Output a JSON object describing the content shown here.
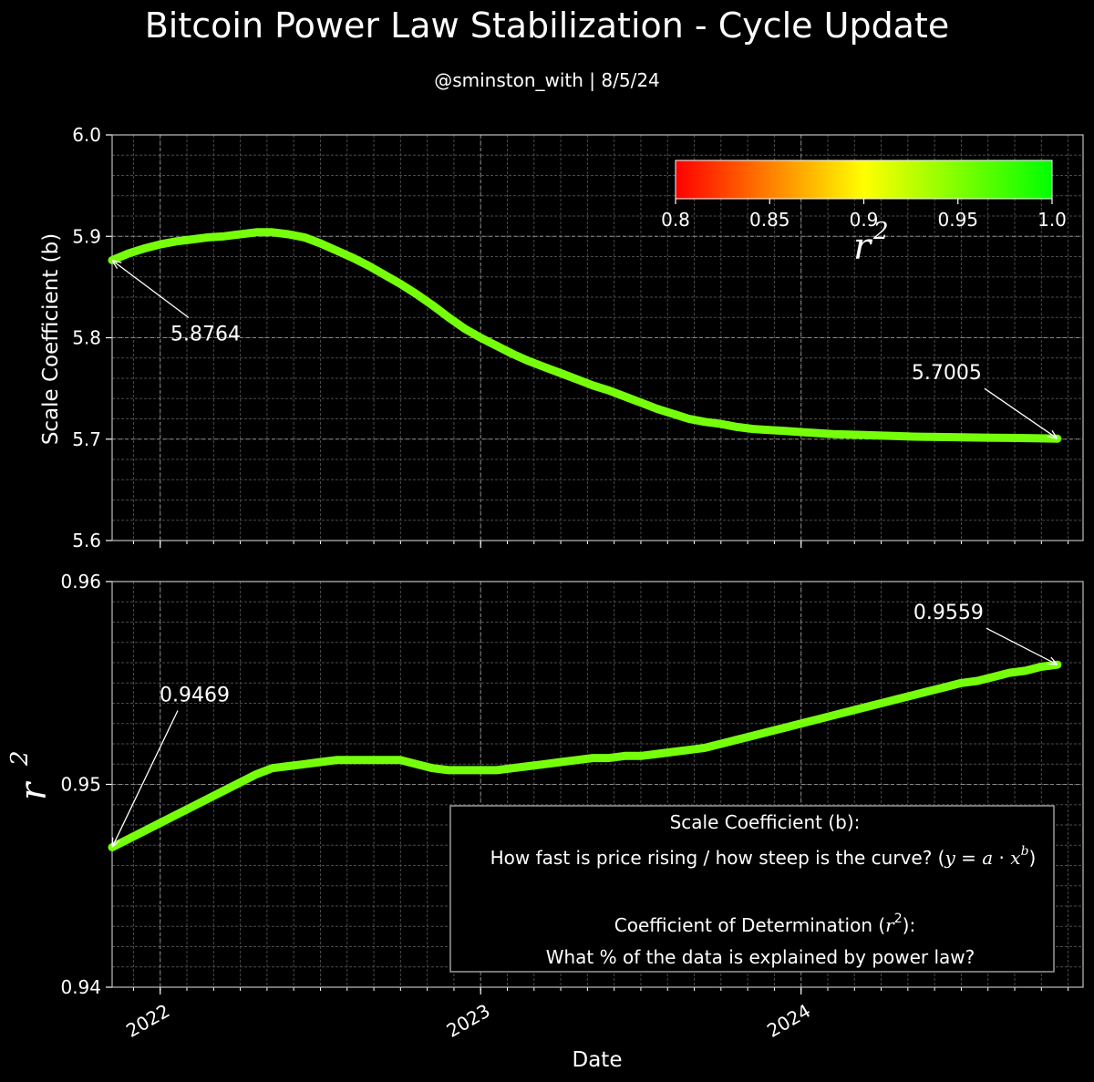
{
  "title": "Bitcoin Power Law Stabilization - Cycle Update",
  "subtitle": "@sminston_with | 8/5/24",
  "colors": {
    "background": "#000000",
    "line": "#76ff0b",
    "grid_major": "#8a8a8a",
    "grid_minor": "#4a4a4a",
    "colormap": [
      "#ff0000",
      "#ffff00",
      "#00ff00"
    ]
  },
  "colorbar": {
    "ticks": [
      "0.8",
      "0.85",
      "0.9",
      "0.95",
      "1.0"
    ],
    "range": [
      0.8,
      1.0
    ],
    "label_base": "r",
    "label_exp": "2"
  },
  "info_box": {
    "line1": "Scale Coefficient (b):",
    "line2_text": "How fast is price rising / how steep is the curve? (",
    "line2_y": "y",
    "line2_eq": " = ",
    "line2_a": "a",
    "line2_dot": " · ",
    "line2_x": "x",
    "line2_b": "b",
    "line2_close": ")",
    "line3_text": "Coefficient of Determination (",
    "line3_r": "r",
    "line3_exp": "2",
    "line3_close": "):",
    "line4": "What % of the data is explained by power law?"
  },
  "chart_data": [
    {
      "type": "line",
      "ylabel": "Scale Coefficient (b)",
      "ylim": [
        5.6,
        6.0
      ],
      "yticks": [
        "5.6",
        "5.7",
        "5.8",
        "5.9",
        "6.0"
      ],
      "xlim": [
        2021.85,
        2024.88
      ],
      "xticks": [
        "2022",
        "2023",
        "2024"
      ],
      "grid": true,
      "x": [
        2021.85,
        2021.9,
        2021.95,
        2022.0,
        2022.05,
        2022.1,
        2022.15,
        2022.2,
        2022.25,
        2022.3,
        2022.35,
        2022.4,
        2022.45,
        2022.5,
        2022.55,
        2022.6,
        2022.65,
        2022.7,
        2022.75,
        2022.8,
        2022.85,
        2022.9,
        2022.95,
        2023.0,
        2023.05,
        2023.1,
        2023.15,
        2023.2,
        2023.25,
        2023.3,
        2023.35,
        2023.4,
        2023.45,
        2023.5,
        2023.55,
        2023.6,
        2023.65,
        2023.7,
        2023.75,
        2023.8,
        2023.85,
        2023.9,
        2023.95,
        2024.0,
        2024.05,
        2024.1,
        2024.15,
        2024.2,
        2024.25,
        2024.3,
        2024.35,
        2024.4,
        2024.45,
        2024.5,
        2024.55,
        2024.6,
        2024.65,
        2024.7,
        2024.75,
        2024.8
      ],
      "y": [
        5.8764,
        5.883,
        5.888,
        5.892,
        5.895,
        5.897,
        5.899,
        5.9,
        5.902,
        5.904,
        5.904,
        5.902,
        5.899,
        5.893,
        5.886,
        5.879,
        5.871,
        5.862,
        5.853,
        5.843,
        5.832,
        5.82,
        5.809,
        5.8,
        5.792,
        5.784,
        5.777,
        5.771,
        5.765,
        5.759,
        5.753,
        5.748,
        5.742,
        5.736,
        5.73,
        5.725,
        5.72,
        5.717,
        5.715,
        5.712,
        5.71,
        5.709,
        5.708,
        5.707,
        5.706,
        5.705,
        5.7045,
        5.704,
        5.7035,
        5.703,
        5.7025,
        5.7022,
        5.702,
        5.7018,
        5.7016,
        5.7014,
        5.7012,
        5.701,
        5.7008,
        5.7005
      ],
      "annotations": [
        {
          "text": "5.8764",
          "x": 2021.85,
          "y": 5.8764
        },
        {
          "text": "5.7005",
          "x": 2024.8,
          "y": 5.7005
        }
      ]
    },
    {
      "type": "line",
      "ylabel_base": "r",
      "ylabel_exp": "2",
      "ylim": [
        0.94,
        0.96
      ],
      "yticks": [
        "0.94",
        "0.95",
        "0.96"
      ],
      "xlim": [
        2021.85,
        2024.88
      ],
      "xticks": [
        "2022",
        "2023",
        "2024"
      ],
      "xlabel": "Date",
      "grid": true,
      "x": [
        2021.85,
        2021.9,
        2021.95,
        2022.0,
        2022.05,
        2022.1,
        2022.15,
        2022.2,
        2022.25,
        2022.3,
        2022.35,
        2022.4,
        2022.45,
        2022.5,
        2022.55,
        2022.6,
        2022.65,
        2022.7,
        2022.75,
        2022.8,
        2022.85,
        2022.9,
        2022.95,
        2023.0,
        2023.05,
        2023.1,
        2023.15,
        2023.2,
        2023.25,
        2023.3,
        2023.35,
        2023.4,
        2023.45,
        2023.5,
        2023.55,
        2023.6,
        2023.65,
        2023.7,
        2023.75,
        2023.8,
        2023.85,
        2023.9,
        2023.95,
        2024.0,
        2024.05,
        2024.1,
        2024.15,
        2024.2,
        2024.25,
        2024.3,
        2024.35,
        2024.4,
        2024.45,
        2024.5,
        2024.55,
        2024.6,
        2024.65,
        2024.7,
        2024.75,
        2024.8
      ],
      "y": [
        0.9469,
        0.9473,
        0.9477,
        0.9481,
        0.9485,
        0.9489,
        0.9493,
        0.9497,
        0.9501,
        0.9505,
        0.9508,
        0.9509,
        0.951,
        0.9511,
        0.9512,
        0.9512,
        0.9512,
        0.9512,
        0.9512,
        0.951,
        0.9508,
        0.9507,
        0.9507,
        0.9507,
        0.9507,
        0.9508,
        0.9509,
        0.951,
        0.9511,
        0.9512,
        0.9513,
        0.9513,
        0.9514,
        0.9514,
        0.9515,
        0.9516,
        0.9517,
        0.9518,
        0.952,
        0.9522,
        0.9524,
        0.9526,
        0.9528,
        0.953,
        0.9532,
        0.9534,
        0.9536,
        0.9538,
        0.954,
        0.9542,
        0.9544,
        0.9546,
        0.9548,
        0.955,
        0.9551,
        0.9553,
        0.9555,
        0.9556,
        0.9558,
        0.9559
      ],
      "annotations": [
        {
          "text": "0.9469",
          "x": 2021.85,
          "y": 0.9469
        },
        {
          "text": "0.9559",
          "x": 2024.8,
          "y": 0.9559
        }
      ]
    }
  ]
}
